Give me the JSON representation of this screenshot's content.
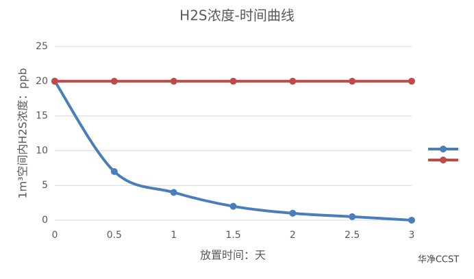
{
  "chart_data": {
    "type": "line",
    "title": "H2S浓度-时间曲线",
    "y_label": "1m³空间内H2S浓度：ppb",
    "x_label": "放置时间：天",
    "watermark": "华净CCST",
    "x": [
      0,
      0.5,
      1,
      1.5,
      2,
      2.5,
      3
    ],
    "series": [
      {
        "color": "#4a7ebb",
        "values": [
          20,
          7,
          4,
          2,
          1,
          0.5,
          0
        ]
      },
      {
        "color": "#be4b48",
        "values": [
          20,
          20,
          20,
          20,
          20,
          20,
          20
        ]
      }
    ],
    "xlim": [
      0,
      3
    ],
    "xticks": [
      0,
      0.5,
      1,
      1.5,
      2,
      2.5,
      3
    ],
    "ylim": [
      0,
      25
    ],
    "yticks": [
      0,
      5,
      10,
      15,
      20,
      25
    ],
    "grid": true,
    "legend": "right",
    "smooth": true
  }
}
